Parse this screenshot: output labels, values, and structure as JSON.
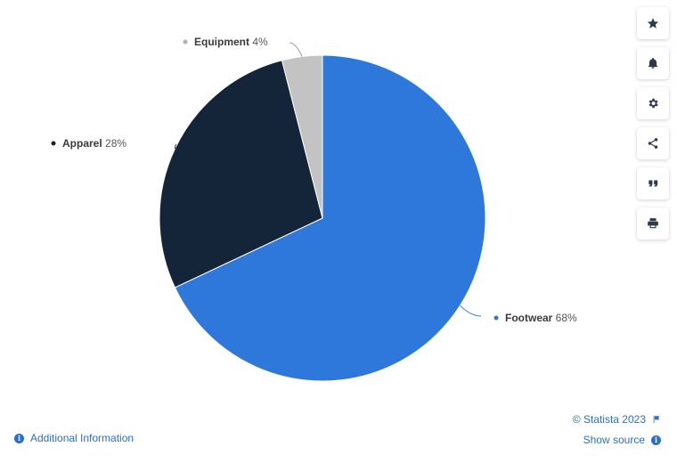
{
  "chart_data": {
    "type": "pie",
    "categories": [
      "Footwear",
      "Apparel",
      "Equipment"
    ],
    "values": [
      68,
      28,
      4
    ],
    "value_labels": [
      "68%",
      "28%",
      "4%"
    ],
    "colors": [
      "#2e78db",
      "#14253a",
      "#c3c3c3"
    ],
    "title": "",
    "legend": "none",
    "start": "top, clockwise"
  },
  "toolbar": {
    "items": [
      "star-icon",
      "bell-icon",
      "gear-icon",
      "share-icon",
      "quote-icon",
      "print-icon"
    ]
  },
  "footer": {
    "additional_info": "Additional Information",
    "copyright": "© Statista 2023",
    "show_source": "Show source"
  }
}
